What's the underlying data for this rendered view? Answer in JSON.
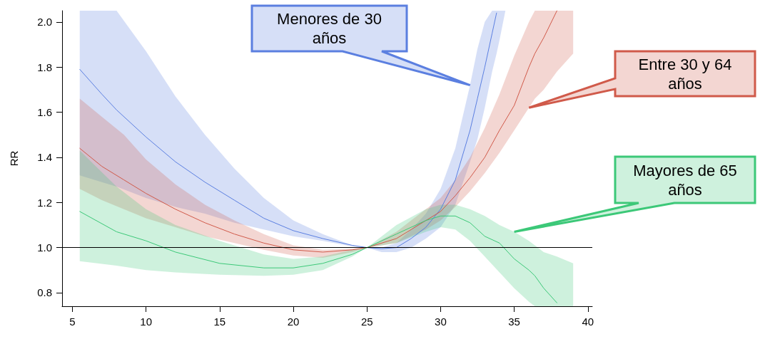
{
  "chart_data": {
    "type": "line",
    "ylabel": "RR",
    "xlim": [
      4.3,
      40.3
    ],
    "ylim": [
      0.74,
      2.05
    ],
    "xticks": [
      5,
      10,
      15,
      20,
      25,
      30,
      35,
      40
    ],
    "yticks": [
      0.8,
      {
        "value": 1,
        "label": "1.0"
      },
      1.2,
      1.4,
      1.6,
      1.8,
      {
        "value": 2,
        "label": "2.0"
      }
    ],
    "grid": false,
    "marker": "none",
    "line_style": "solid",
    "ref_lines": [
      {
        "axis": "y",
        "value": 1.0,
        "color": "#000000"
      }
    ],
    "series": [
      {
        "color": "#5b7fe0",
        "x": [
          5.5,
          7,
          8,
          10,
          12,
          14,
          16,
          18,
          20,
          22,
          24,
          25,
          26,
          27,
          28,
          29,
          30,
          31,
          32,
          32.5,
          33,
          33.5,
          33.8,
          34,
          34.4
        ],
        "values": [
          1.79,
          1.68,
          1.61,
          1.49,
          1.38,
          1.29,
          1.21,
          1.13,
          1.075,
          1.04,
          1.01,
          1.0,
          0.995,
          1.0,
          1.04,
          1.09,
          1.17,
          1.3,
          1.52,
          1.66,
          1.8,
          1.95,
          2.04,
          null,
          null
        ],
        "upper": [
          2.05,
          2.05,
          2.05,
          1.87,
          1.67,
          1.5,
          1.35,
          1.22,
          1.12,
          1.06,
          1.01,
          1.0,
          1.0,
          1.02,
          1.08,
          1.15,
          1.26,
          1.44,
          1.72,
          1.88,
          2.0,
          2.05,
          2.05,
          2.05,
          2.05
        ],
        "lower": [
          1.32,
          1.29,
          1.27,
          1.22,
          1.18,
          1.15,
          1.11,
          1.08,
          1.05,
          1.03,
          1.005,
          1.0,
          0.98,
          0.98,
          1.0,
          1.04,
          1.09,
          1.19,
          1.38,
          1.48,
          1.62,
          1.78,
          1.86,
          1.92,
          2.05
        ]
      },
      {
        "color": "#d05a4a",
        "x": [
          5.5,
          7,
          8.5,
          10,
          12,
          14,
          16,
          18,
          20,
          22,
          24,
          25,
          27,
          28,
          29,
          30,
          31,
          32,
          33,
          34,
          35,
          36,
          36.4,
          37,
          37.9,
          39
        ],
        "values": [
          1.44,
          1.36,
          1.3,
          1.24,
          1.17,
          1.11,
          1.06,
          1.02,
          0.99,
          0.98,
          0.99,
          1.0,
          1.04,
          1.08,
          1.12,
          1.16,
          1.23,
          1.31,
          1.4,
          1.52,
          1.63,
          1.8,
          1.86,
          1.93,
          2.05,
          null
        ],
        "upper": [
          1.66,
          1.58,
          1.5,
          1.39,
          1.28,
          1.19,
          1.12,
          1.06,
          1.01,
          0.99,
          0.995,
          1.0,
          1.07,
          1.12,
          1.17,
          1.22,
          1.3,
          1.4,
          1.53,
          1.68,
          1.85,
          2.0,
          2.05,
          2.05,
          2.05,
          2.05
        ],
        "lower": [
          1.26,
          1.21,
          1.17,
          1.13,
          1.09,
          1.05,
          1.02,
          0.99,
          0.965,
          0.955,
          0.98,
          1.0,
          1.02,
          1.05,
          1.08,
          1.12,
          1.18,
          1.25,
          1.33,
          1.42,
          1.52,
          1.62,
          1.66,
          1.7,
          1.78,
          1.86
        ]
      },
      {
        "color": "#3cc878",
        "x": [
          5.5,
          8,
          10,
          12,
          15,
          18,
          20,
          22,
          24,
          25,
          27,
          29,
          30,
          31,
          32,
          33,
          34,
          35,
          36,
          36.4,
          37,
          37.9,
          39
        ],
        "values": [
          1.16,
          1.07,
          1.03,
          0.98,
          0.93,
          0.91,
          0.91,
          0.93,
          0.97,
          1.0,
          1.06,
          1.12,
          1.14,
          1.14,
          1.11,
          1.05,
          1.02,
          0.95,
          0.9,
          0.875,
          0.82,
          0.755,
          null
        ],
        "upper": [
          1.43,
          1.27,
          1.17,
          1.1,
          1.03,
          0.97,
          0.95,
          0.96,
          0.99,
          1.0,
          1.1,
          1.17,
          1.19,
          1.19,
          1.17,
          1.14,
          1.1,
          1.07,
          1.03,
          1.01,
          0.98,
          0.96,
          0.93
        ],
        "lower": [
          0.94,
          0.92,
          0.9,
          0.89,
          0.88,
          0.875,
          0.88,
          0.9,
          0.96,
          1.0,
          1.02,
          1.07,
          1.09,
          1.08,
          1.03,
          0.96,
          0.89,
          0.82,
          0.76,
          0.74,
          0.74,
          0.74,
          0.74
        ]
      }
    ],
    "annotations": [
      "Menores de 30 años",
      "Entre 30 y 64 años",
      "Mayores de 65 años"
    ]
  }
}
